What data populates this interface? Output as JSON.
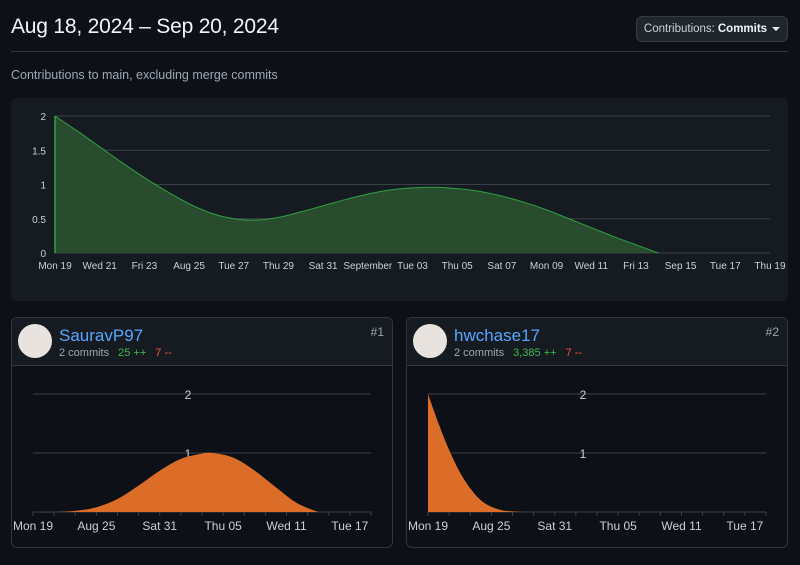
{
  "header": {
    "title": "Aug 18, 2024 – Sep 20, 2024",
    "dropdown_prefix": "Contributions:",
    "dropdown_value": "Commits"
  },
  "subtitle": "Contributions to main, excluding merge commits",
  "colors": {
    "main_fill": "#2a4c2e",
    "main_stroke": "#2ea043",
    "user_fill": "#db6d28",
    "grid": "#3a4048",
    "tick_text": "#c9d1d9"
  },
  "chart_data": [
    {
      "type": "area",
      "title": "",
      "x_labels": [
        "Mon 19",
        "Wed 21",
        "Fri 23",
        "Aug 25",
        "Tue 27",
        "Thu 29",
        "Sat 31",
        "September",
        "Tue 03",
        "Thu 05",
        "Sat 07",
        "Mon 09",
        "Wed 11",
        "Fri 13",
        "Sep 15",
        "Tue 17",
        "Thu 19"
      ],
      "y_ticks": [
        "2",
        "1.5",
        "1",
        "0.5",
        "0"
      ],
      "ylim": [
        0,
        2
      ],
      "x": [
        "2024-08-19",
        "2024-08-20",
        "2024-08-21",
        "2024-08-22",
        "2024-08-23",
        "2024-08-24",
        "2024-08-25",
        "2024-08-26",
        "2024-08-27",
        "2024-08-28",
        "2024-08-29",
        "2024-08-30",
        "2024-08-31",
        "2024-09-01",
        "2024-09-02",
        "2024-09-03",
        "2024-09-04",
        "2024-09-05",
        "2024-09-06",
        "2024-09-07",
        "2024-09-08",
        "2024-09-09",
        "2024-09-10",
        "2024-09-11",
        "2024-09-12",
        "2024-09-13",
        "2024-09-14",
        "2024-09-15"
      ],
      "series": [
        {
          "values": [
            2,
            1.78,
            1.55,
            1.32,
            1.1,
            0.9,
            0.72,
            0.58,
            0.5,
            0.48,
            0.52,
            0.6,
            0.69,
            0.78,
            0.86,
            0.92,
            0.95,
            0.96,
            0.94,
            0.9,
            0.83,
            0.74,
            0.63,
            0.5,
            0.37,
            0.24,
            0.12,
            0
          ]
        }
      ],
      "grid": true
    },
    {
      "type": "area",
      "title": "SauravP97",
      "x_labels": [
        "Mon 19",
        "Aug 25",
        "Sat 31",
        "Thu 05",
        "Wed 11",
        "Tue 17"
      ],
      "y_ticks": [
        "2",
        "1"
      ],
      "ylim": [
        0,
        2
      ],
      "x": [
        "2024-08-19",
        "2024-08-21",
        "2024-08-23",
        "2024-08-25",
        "2024-08-27",
        "2024-08-29",
        "2024-08-31",
        "2024-09-02",
        "2024-09-04",
        "2024-09-05",
        "2024-09-07",
        "2024-09-09",
        "2024-09-11",
        "2024-09-13",
        "2024-09-15"
      ],
      "series": [
        {
          "values": [
            0,
            0,
            0.02,
            0.08,
            0.22,
            0.45,
            0.7,
            0.9,
            0.99,
            1,
            0.92,
            0.7,
            0.42,
            0.15,
            0
          ]
        }
      ],
      "grid": true
    },
    {
      "type": "area",
      "title": "hwchase17",
      "x_labels": [
        "Mon 19",
        "Aug 25",
        "Sat 31",
        "Thu 05",
        "Wed 11",
        "Tue 17"
      ],
      "y_ticks": [
        "2",
        "1"
      ],
      "ylim": [
        0,
        2
      ],
      "x": [
        "2024-08-19",
        "2024-08-20",
        "2024-08-21",
        "2024-08-22",
        "2024-08-23",
        "2024-08-24",
        "2024-08-25",
        "2024-08-26",
        "2024-08-27",
        "2024-08-28",
        "2024-08-29",
        "2024-08-30",
        "2024-09-20"
      ],
      "series": [
        {
          "values": [
            2,
            1.5,
            1.05,
            0.68,
            0.4,
            0.2,
            0.09,
            0.03,
            0.01,
            0,
            0,
            0,
            0
          ]
        }
      ],
      "grid": true
    }
  ],
  "contributors": [
    {
      "username": "SauravP97",
      "commits": "2 commits",
      "additions": "25 ++",
      "deletions": "7 --",
      "rank": "#1",
      "avatar_icon": "avatar-icon"
    },
    {
      "username": "hwchase17",
      "commits": "2 commits",
      "additions": "3,385 ++",
      "deletions": "7 --",
      "rank": "#2",
      "avatar_icon": "avatar-icon"
    }
  ]
}
